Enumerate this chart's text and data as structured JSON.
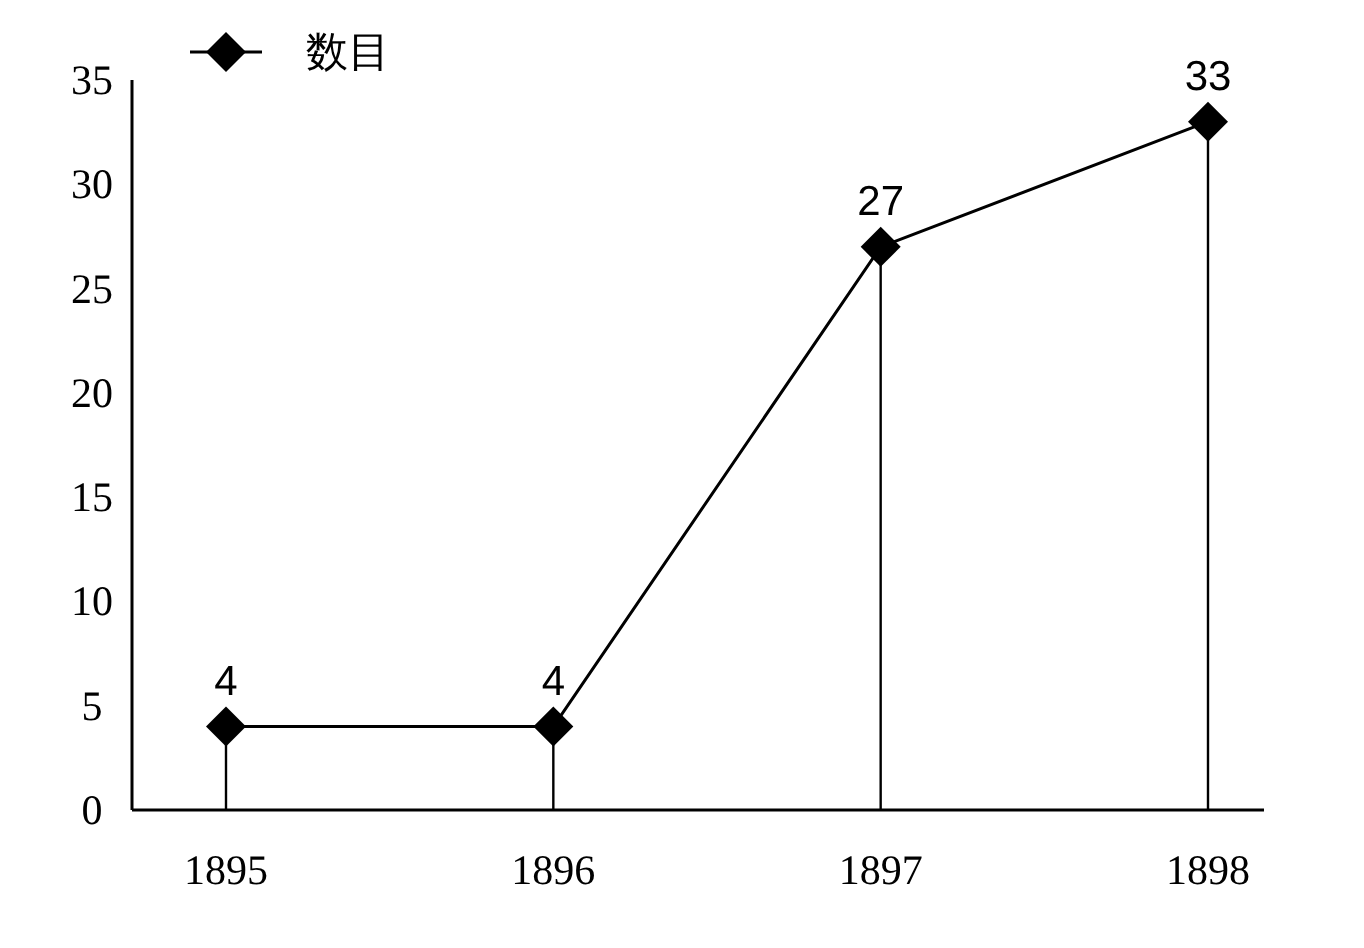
{
  "chart_data": {
    "type": "lollipop",
    "categories": [
      "1895",
      "1896",
      "1897",
      "1898"
    ],
    "series": [
      {
        "name": "数目",
        "color": "#000000",
        "values": [
          4,
          4,
          27,
          33
        ]
      }
    ],
    "ylim": [
      0,
      35
    ],
    "yticks": [
      0,
      5,
      10,
      15,
      20,
      25,
      30,
      35
    ],
    "marker": "diamond",
    "data_labels": true,
    "legend": "top left"
  }
}
